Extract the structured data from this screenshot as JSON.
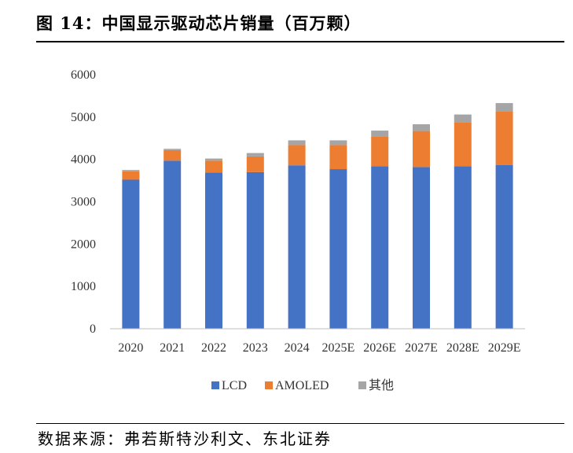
{
  "header": {
    "title": "图 14：中国显示驱动芯片销量（百万颗）"
  },
  "footer": {
    "source": "数据来源：弗若斯特沙利文、东北证券"
  },
  "colors": {
    "lcd": "#4472C4",
    "amoled": "#ED7D31",
    "other": "#A5A5A5"
  },
  "chart_data": {
    "type": "bar",
    "stacked": true,
    "title": "中国显示驱动芯片销量（百万颗）",
    "xlabel": "",
    "ylabel": "",
    "ylim": [
      0,
      6000
    ],
    "yticks": [
      0,
      1000,
      2000,
      3000,
      4000,
      5000,
      6000
    ],
    "grid": false,
    "legend_position": "bottom",
    "categories": [
      "2020",
      "2021",
      "2022",
      "2023",
      "2024",
      "2025E",
      "2026E",
      "2027E",
      "2028E",
      "2029E"
    ],
    "series": [
      {
        "name": "LCD",
        "color": "#4472C4",
        "values": [
          3520,
          3970,
          3690,
          3700,
          3860,
          3770,
          3840,
          3820,
          3840,
          3870
        ]
      },
      {
        "name": "AMOLED",
        "color": "#ED7D31",
        "values": [
          200,
          250,
          280,
          370,
          480,
          570,
          700,
          850,
          1040,
          1270
        ]
      },
      {
        "name": "其他",
        "color": "#A5A5A5",
        "values": [
          30,
          30,
          50,
          80,
          110,
          110,
          140,
          160,
          180,
          190
        ]
      }
    ]
  }
}
